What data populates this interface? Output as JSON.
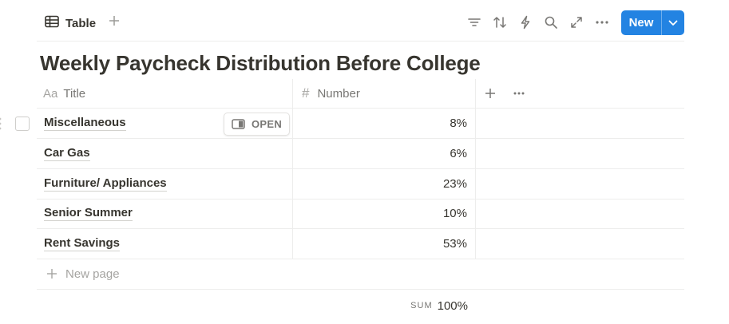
{
  "toolbar": {
    "tab_label": "Table",
    "new_button_label": "New",
    "icons": [
      "filter-icon",
      "sort-icon",
      "automation-icon",
      "search-icon",
      "expand-icon",
      "more-icon"
    ]
  },
  "database": {
    "title": "Weekly Paycheck Distribution Before College",
    "columns": {
      "title_prefix": "Aa",
      "title": "Title",
      "number_prefix": "#",
      "number": "Number"
    },
    "rows": [
      {
        "title": "Miscellaneous",
        "number": "8%"
      },
      {
        "title": "Car Gas",
        "number": "6%"
      },
      {
        "title": "Furniture/ Appliances",
        "number": "23%"
      },
      {
        "title": "Senior Summer",
        "number": "10%"
      },
      {
        "title": "Rent Savings",
        "number": "53%"
      }
    ],
    "open_label": "OPEN",
    "new_page_label": "New page",
    "sum_label": "SUM",
    "sum_value": "100%"
  },
  "colors": {
    "accent": "#2383e2",
    "text": "#37352f",
    "muted": "#787774",
    "border": "#ededec"
  }
}
